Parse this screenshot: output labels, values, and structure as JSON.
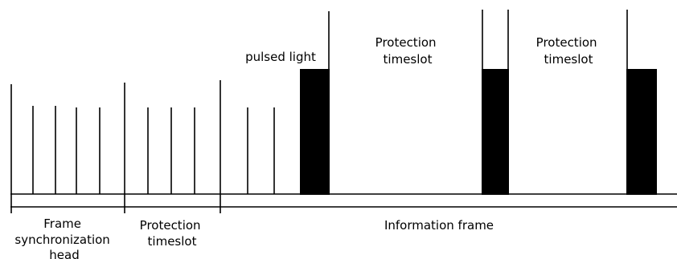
{
  "labels": {
    "pulsed_light": "pulsed light",
    "protection_timeslot_top_1": [
      "Protection",
      "timeslot"
    ],
    "protection_timeslot_top_2": [
      "Protection",
      "timeslot"
    ],
    "frame_sync_head": [
      "Frame",
      "synchronization",
      "head"
    ],
    "protection_timeslot_bottom": [
      "Protection",
      "timeslot"
    ],
    "information_frame": "Information frame"
  },
  "colors": {
    "line": "#000000",
    "pulse": "#000000",
    "background": "#ffffff"
  }
}
